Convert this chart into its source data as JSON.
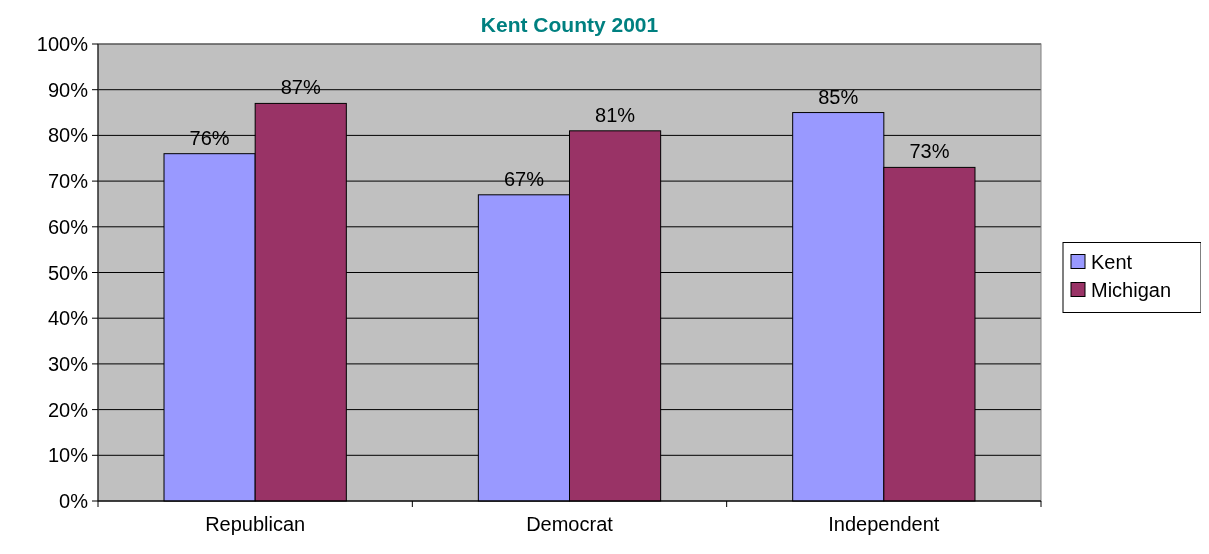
{
  "chart_data": {
    "type": "bar",
    "title": "Kent County 2001",
    "categories": [
      "Republican",
      "Democrat",
      "Independent"
    ],
    "series": [
      {
        "name": "Kent",
        "color": "#9999ff",
        "values": [
          76,
          67,
          85
        ],
        "value_labels": [
          "76%",
          "67%",
          "85%"
        ]
      },
      {
        "name": "Michigan",
        "color": "#993366",
        "values": [
          87,
          81,
          73
        ],
        "value_labels": [
          "87%",
          "81%",
          "73%"
        ]
      }
    ],
    "ylim": [
      0,
      100
    ],
    "yticks": [
      {
        "value": 0,
        "label": "0%"
      },
      {
        "value": 10,
        "label": "10%"
      },
      {
        "value": 20,
        "label": "20%"
      },
      {
        "value": 30,
        "label": "30%"
      },
      {
        "value": 40,
        "label": "40%"
      },
      {
        "value": 50,
        "label": "50%"
      },
      {
        "value": 60,
        "label": "60%"
      },
      {
        "value": 70,
        "label": "70%"
      },
      {
        "value": 80,
        "label": "80%"
      },
      {
        "value": 90,
        "label": "90%"
      },
      {
        "value": 100,
        "label": "100%"
      }
    ],
    "grid": "y",
    "legend": "right"
  }
}
